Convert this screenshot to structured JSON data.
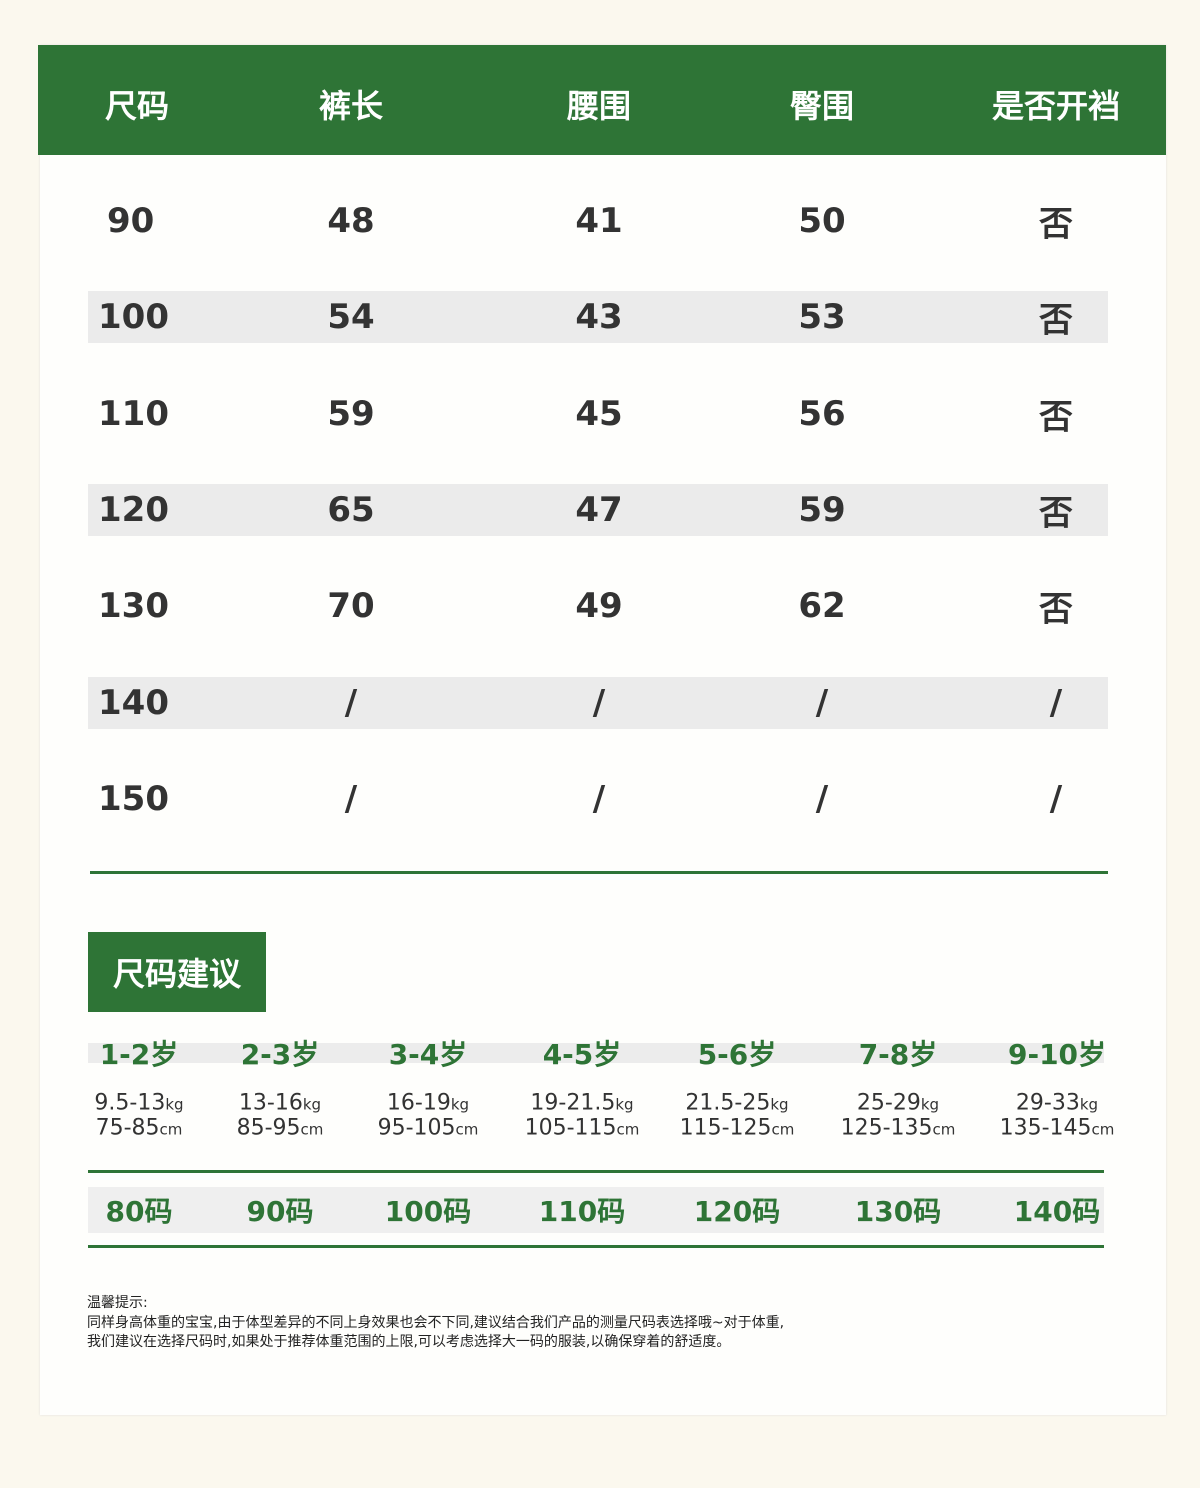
{
  "colors": {
    "accent": "#2e7436",
    "background": "#fbf8ee",
    "stripe": "#ebebeb"
  },
  "table": {
    "headers": [
      "尺码",
      "裤长",
      "腰围",
      "臀围",
      "是否开裆"
    ],
    "rows": [
      [
        "90",
        "48",
        "41",
        "50",
        "否"
      ],
      [
        "100",
        "54",
        "43",
        "53",
        "否"
      ],
      [
        "110",
        "59",
        "45",
        "56",
        "否"
      ],
      [
        "120",
        "65",
        "47",
        "59",
        "否"
      ],
      [
        "130",
        "70",
        "49",
        "62",
        "否"
      ],
      [
        "140",
        "/",
        "/",
        "/",
        "/"
      ],
      [
        "150",
        "/",
        "/",
        "/",
        "/"
      ]
    ]
  },
  "recommend": {
    "title": "尺码建议",
    "columns": [
      {
        "age": "1-2岁",
        "weight": "9.5-13",
        "height": "75-85",
        "size": "80码"
      },
      {
        "age": "2-3岁",
        "weight": "13-16",
        "height": "85-95",
        "size": "90码"
      },
      {
        "age": "3-4岁",
        "weight": "16-19",
        "height": "95-105",
        "size": "100码"
      },
      {
        "age": "4-5岁",
        "weight": "19-21.5",
        "height": "105-115",
        "size": "110码"
      },
      {
        "age": "5-6岁",
        "weight": "21.5-25",
        "height": "115-125",
        "size": "120码"
      },
      {
        "age": "7-8岁",
        "weight": "25-29",
        "height": "125-135",
        "size": "130码"
      },
      {
        "age": "9-10岁",
        "weight": "29-33",
        "height": "135-145",
        "size": "140码"
      }
    ],
    "weight_unit": "kg",
    "height_unit": "cm"
  },
  "note": {
    "title": "温馨提示:",
    "lines": [
      "同样身高体重的宝宝,由于体型差异的不同上身效果也会不下同,建议结合我们产品的测量尺码表选择哦~对于体重,",
      "我们建议在选择尺码时,如果处于推荐体重范围的上限,可以考虑选择大一码的服装,以确保穿着的舒适度。"
    ]
  }
}
